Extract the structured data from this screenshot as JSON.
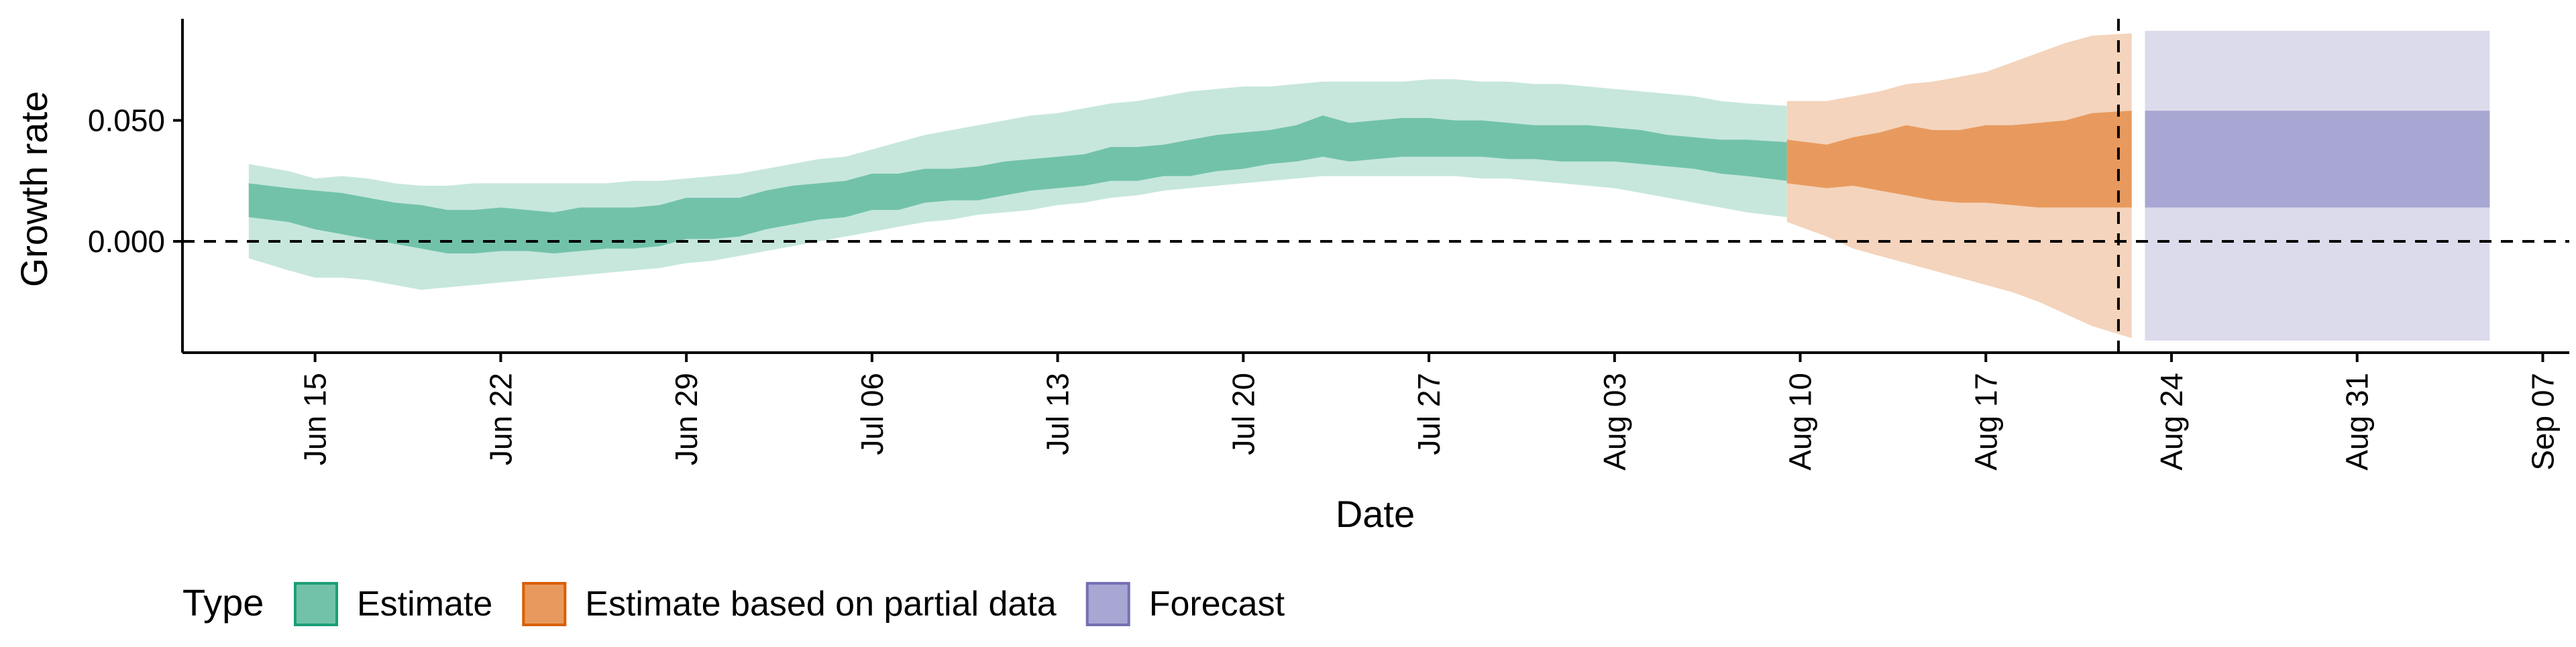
{
  "chart_data": {
    "type": "area",
    "title": "",
    "xlabel": "Date",
    "ylabel": "Growth rate",
    "x_axis": {
      "type": "date",
      "range": [
        "2020-06-10",
        "2020-09-08"
      ],
      "ticks": [
        {
          "date": "2020-06-15",
          "label": "Jun 15"
        },
        {
          "date": "2020-06-22",
          "label": "Jun 22"
        },
        {
          "date": "2020-06-29",
          "label": "Jun 29"
        },
        {
          "date": "2020-07-06",
          "label": "Jul 06"
        },
        {
          "date": "2020-07-13",
          "label": "Jul 13"
        },
        {
          "date": "2020-07-20",
          "label": "Jul 20"
        },
        {
          "date": "2020-07-27",
          "label": "Jul 27"
        },
        {
          "date": "2020-08-03",
          "label": "Aug 03"
        },
        {
          "date": "2020-08-10",
          "label": "Aug 10"
        },
        {
          "date": "2020-08-17",
          "label": "Aug 17"
        },
        {
          "date": "2020-08-24",
          "label": "Aug 24"
        },
        {
          "date": "2020-08-31",
          "label": "Aug 31"
        },
        {
          "date": "2020-09-07",
          "label": "Sep 07"
        }
      ]
    },
    "y_axis": {
      "range": [
        -0.046,
        0.092
      ],
      "ticks": [
        {
          "value": 0.0,
          "label": "0.000"
        },
        {
          "value": 0.05,
          "label": "0.050"
        }
      ]
    },
    "reference_lines": {
      "horizontal_zero": 0.0,
      "vertical_date": "2020-08-22"
    },
    "legend": {
      "title": "Type",
      "position": "bottom-left"
    },
    "series": [
      {
        "name": "Estimate",
        "color_inner": "#72c2aa",
        "color_outer": "#c7e7dc",
        "x": [
          "2020-06-13",
          "2020-06-14",
          "2020-06-15",
          "2020-06-16",
          "2020-06-17",
          "2020-06-18",
          "2020-06-19",
          "2020-06-20",
          "2020-06-21",
          "2020-06-22",
          "2020-06-23",
          "2020-06-24",
          "2020-06-25",
          "2020-06-26",
          "2020-06-27",
          "2020-06-28",
          "2020-06-29",
          "2020-06-30",
          "2020-07-01",
          "2020-07-02",
          "2020-07-03",
          "2020-07-04",
          "2020-07-05",
          "2020-07-06",
          "2020-07-07",
          "2020-07-08",
          "2020-07-09",
          "2020-07-10",
          "2020-07-11",
          "2020-07-12",
          "2020-07-13",
          "2020-07-14",
          "2020-07-15",
          "2020-07-16",
          "2020-07-17",
          "2020-07-18",
          "2020-07-19",
          "2020-07-20",
          "2020-07-21",
          "2020-07-22",
          "2020-07-23",
          "2020-07-24",
          "2020-07-25",
          "2020-07-26",
          "2020-07-27",
          "2020-07-28",
          "2020-07-29",
          "2020-07-30",
          "2020-07-31",
          "2020-08-01",
          "2020-08-02",
          "2020-08-03",
          "2020-08-04",
          "2020-08-05",
          "2020-08-06",
          "2020-08-07",
          "2020-08-08",
          "2020-08-09"
        ],
        "inner_lower": [
          0.01,
          0.008,
          0.005,
          0.003,
          0.001,
          -0.001,
          -0.003,
          -0.005,
          -0.005,
          -0.004,
          -0.004,
          -0.005,
          -0.004,
          -0.003,
          -0.003,
          -0.002,
          0.001,
          0.001,
          0.002,
          0.005,
          0.007,
          0.009,
          0.01,
          0.013,
          0.013,
          0.016,
          0.017,
          0.017,
          0.019,
          0.021,
          0.022,
          0.023,
          0.025,
          0.025,
          0.027,
          0.027,
          0.029,
          0.03,
          0.032,
          0.033,
          0.035,
          0.033,
          0.034,
          0.035,
          0.035,
          0.035,
          0.035,
          0.034,
          0.034,
          0.033,
          0.033,
          0.033,
          0.032,
          0.031,
          0.03,
          0.028,
          0.027,
          0.025
        ],
        "inner_upper": [
          0.024,
          0.022,
          0.021,
          0.02,
          0.018,
          0.016,
          0.015,
          0.013,
          0.013,
          0.014,
          0.013,
          0.012,
          0.014,
          0.014,
          0.014,
          0.015,
          0.018,
          0.018,
          0.018,
          0.021,
          0.023,
          0.024,
          0.025,
          0.028,
          0.028,
          0.03,
          0.03,
          0.031,
          0.033,
          0.034,
          0.035,
          0.036,
          0.039,
          0.039,
          0.04,
          0.042,
          0.044,
          0.045,
          0.046,
          0.048,
          0.052,
          0.049,
          0.05,
          0.051,
          0.051,
          0.05,
          0.05,
          0.049,
          0.048,
          0.048,
          0.048,
          0.047,
          0.046,
          0.044,
          0.043,
          0.042,
          0.042,
          0.041
        ],
        "outer_lower": [
          -0.007,
          -0.012,
          -0.015,
          -0.015,
          -0.016,
          -0.018,
          -0.02,
          -0.019,
          -0.018,
          -0.017,
          -0.016,
          -0.015,
          -0.014,
          -0.013,
          -0.012,
          -0.011,
          -0.009,
          -0.008,
          -0.006,
          -0.004,
          -0.002,
          0.0,
          0.002,
          0.004,
          0.006,
          0.008,
          0.009,
          0.011,
          0.012,
          0.013,
          0.015,
          0.016,
          0.018,
          0.019,
          0.021,
          0.022,
          0.023,
          0.024,
          0.025,
          0.026,
          0.027,
          0.027,
          0.027,
          0.027,
          0.027,
          0.027,
          0.026,
          0.026,
          0.025,
          0.024,
          0.023,
          0.022,
          0.02,
          0.018,
          0.016,
          0.014,
          0.012,
          0.01
        ],
        "outer_upper": [
          0.032,
          0.029,
          0.026,
          0.027,
          0.026,
          0.024,
          0.023,
          0.023,
          0.024,
          0.024,
          0.024,
          0.024,
          0.024,
          0.024,
          0.025,
          0.025,
          0.026,
          0.027,
          0.028,
          0.03,
          0.032,
          0.034,
          0.035,
          0.038,
          0.041,
          0.044,
          0.046,
          0.048,
          0.05,
          0.052,
          0.053,
          0.055,
          0.057,
          0.058,
          0.06,
          0.062,
          0.063,
          0.064,
          0.064,
          0.065,
          0.066,
          0.066,
          0.066,
          0.066,
          0.067,
          0.067,
          0.066,
          0.066,
          0.065,
          0.065,
          0.064,
          0.063,
          0.062,
          0.061,
          0.06,
          0.058,
          0.057,
          0.056
        ]
      },
      {
        "name": "Estimate based on partial data",
        "color_inner": "#e89a5e",
        "color_outer": "#f4d4bc",
        "x": [
          "2020-08-10",
          "2020-08-11",
          "2020-08-12",
          "2020-08-13",
          "2020-08-14",
          "2020-08-15",
          "2020-08-16",
          "2020-08-17",
          "2020-08-18",
          "2020-08-19",
          "2020-08-20",
          "2020-08-21",
          "2020-08-22"
        ],
        "inner_lower": [
          0.024,
          0.022,
          0.023,
          0.021,
          0.019,
          0.017,
          0.016,
          0.016,
          0.015,
          0.014,
          0.014,
          0.014,
          0.014
        ],
        "inner_upper": [
          0.042,
          0.04,
          0.043,
          0.045,
          0.048,
          0.046,
          0.046,
          0.048,
          0.048,
          0.049,
          0.05,
          0.053,
          0.054
        ],
        "outer_lower": [
          0.008,
          0.002,
          -0.003,
          -0.006,
          -0.009,
          -0.012,
          -0.015,
          -0.018,
          -0.021,
          -0.025,
          -0.03,
          -0.035,
          -0.04
        ],
        "outer_upper": [
          0.058,
          0.058,
          0.06,
          0.062,
          0.065,
          0.066,
          0.068,
          0.07,
          0.074,
          0.078,
          0.082,
          0.085,
          0.086
        ]
      },
      {
        "name": "Forecast",
        "color_inner": "#a8a6d2",
        "color_outer": "#dcdbec",
        "x": [
          "2020-08-23",
          "2020-09-05"
        ],
        "inner_lower": [
          0.014,
          0.014
        ],
        "inner_upper": [
          0.054,
          0.054
        ],
        "outer_lower": [
          -0.041,
          -0.041
        ],
        "outer_upper": [
          0.087,
          0.087
        ]
      }
    ]
  }
}
